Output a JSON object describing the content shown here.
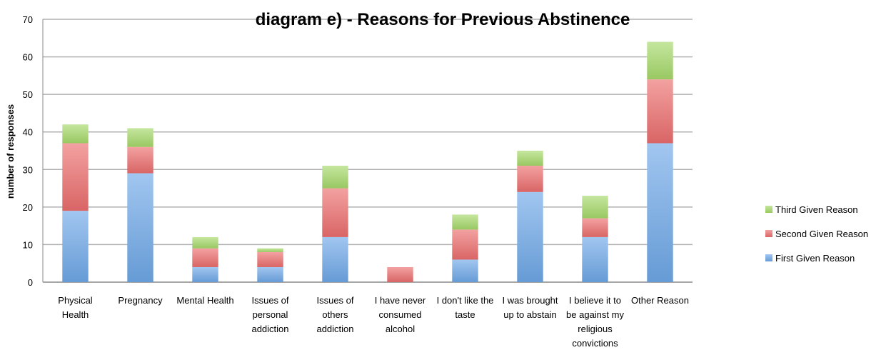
{
  "chart_data": {
    "type": "bar",
    "stacked": true,
    "title": "diagram e) - Reasons for Previous Abstinence",
    "xlabel": "",
    "ylabel": "number of responses",
    "ylim": [
      0,
      70
    ],
    "yticks": [
      0,
      10,
      20,
      30,
      40,
      50,
      60,
      70
    ],
    "grid": true,
    "legend_position": "right",
    "categories": [
      "Physical Health",
      "Pregnancy",
      "Mental Health",
      "Issues of personal addiction",
      "Issues of others addiction",
      "I have never consumed alcohol",
      "I don't like the taste",
      "I was brought up to abstain",
      "I believe it to be against my religious convictions",
      "Other Reason"
    ],
    "category_label_lines": [
      [
        "Physical",
        "Health"
      ],
      [
        "Pregnancy"
      ],
      [
        "Mental Health"
      ],
      [
        "Issues of",
        "personal",
        "addiction"
      ],
      [
        "Issues of",
        "others",
        "addiction"
      ],
      [
        "I have never",
        "consumed",
        "alcohol"
      ],
      [
        "I don't like the",
        "taste"
      ],
      [
        "I was brought",
        "up to abstain"
      ],
      [
        "I believe it to",
        "be against my",
        "religious",
        "convictions"
      ],
      [
        "Other Reason"
      ]
    ],
    "series": [
      {
        "name": "First Given Reason",
        "color": "#6fa8e8",
        "values": [
          19,
          29,
          4,
          4,
          12,
          0,
          6,
          24,
          12,
          37
        ]
      },
      {
        "name": "Second Given Reason",
        "color": "#ec6e6e",
        "values": [
          18,
          7,
          5,
          4,
          13,
          4,
          8,
          7,
          5,
          17
        ]
      },
      {
        "name": "Third Given Reason",
        "color": "#a6d96a",
        "values": [
          5,
          5,
          3,
          1,
          6,
          0,
          4,
          4,
          6,
          10
        ]
      }
    ]
  }
}
